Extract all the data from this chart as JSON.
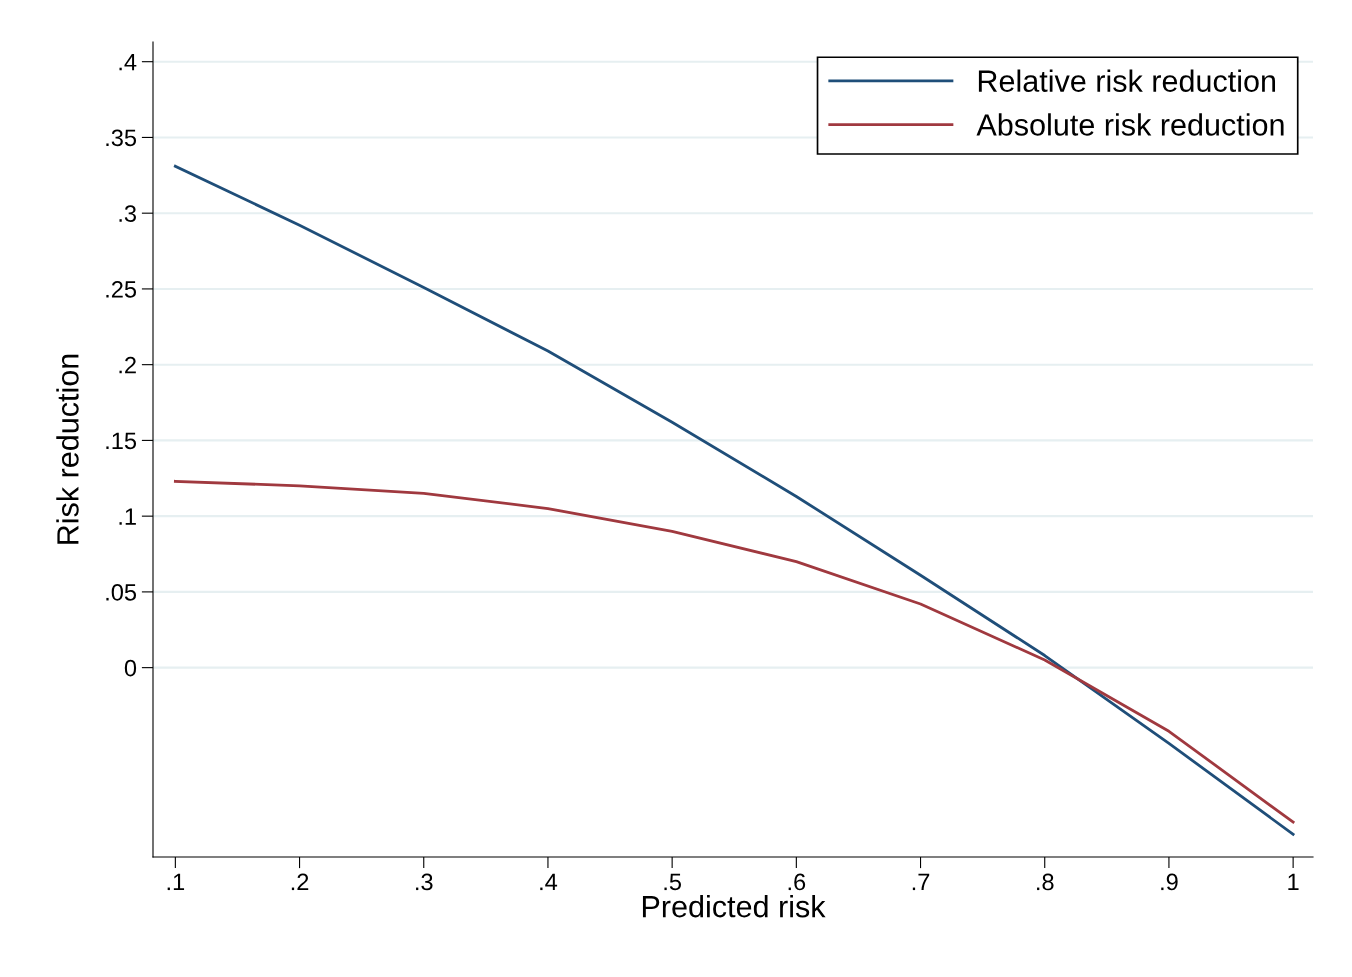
{
  "chart_data": {
    "type": "line",
    "xlabel": "Predicted risk",
    "ylabel": "Risk reduction",
    "x": [
      0.1,
      0.2,
      0.3,
      0.4,
      0.5,
      0.6,
      0.7,
      0.8,
      0.9,
      1
    ],
    "series": [
      {
        "name": "Relative risk reduction",
        "color": "#1f4e79",
        "values": [
          0.331,
          0.292,
          0.251,
          0.209,
          0.162,
          0.113,
          0.061,
          0.008,
          -0.05,
          -0.11
        ]
      },
      {
        "name": "Absolute risk reduction",
        "color": "#a0393f",
        "values": [
          0.123,
          0.12,
          0.115,
          0.105,
          0.09,
          0.07,
          0.042,
          0.005,
          -0.042,
          -0.102
        ]
      }
    ],
    "xlim": [
      0.082,
      1.016
    ],
    "ylim": [
      -0.125,
      0.413
    ],
    "xticks": [
      {
        "value": 0.1,
        "label": ".1"
      },
      {
        "value": 0.2,
        "label": ".2"
      },
      {
        "value": 0.3,
        "label": ".3"
      },
      {
        "value": 0.4,
        "label": ".4"
      },
      {
        "value": 0.5,
        "label": ".5"
      },
      {
        "value": 0.6,
        "label": ".6"
      },
      {
        "value": 0.7,
        "label": ".7"
      },
      {
        "value": 0.8,
        "label": ".8"
      },
      {
        "value": 0.9,
        "label": ".9"
      },
      1
    ],
    "yticks": [
      0,
      {
        "value": 0.05,
        "label": ".05"
      },
      {
        "value": 0.1,
        "label": ".1"
      },
      {
        "value": 0.15,
        "label": ".15"
      },
      {
        "value": 0.2,
        "label": ".2"
      },
      {
        "value": 0.25,
        "label": ".25"
      },
      {
        "value": 0.3,
        "label": ".3"
      },
      {
        "value": 0.35,
        "label": ".35"
      },
      {
        "value": 0.4,
        "label": ".4"
      }
    ],
    "grid": "y",
    "legend": "top right",
    "marker": "none",
    "line_style": "solid"
  }
}
